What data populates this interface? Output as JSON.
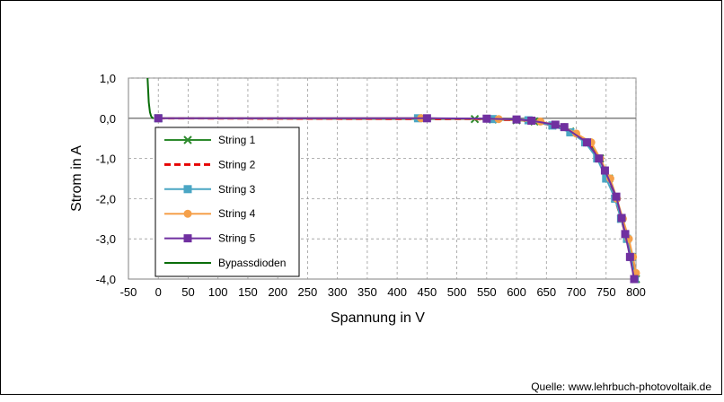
{
  "chart_data": {
    "type": "line",
    "title": "",
    "xlabel": "Spannung in V",
    "ylabel": "Strom in A",
    "xlim": [
      -50,
      800
    ],
    "ylim": [
      -4.0,
      1.0
    ],
    "xticks": [
      -50,
      0,
      50,
      100,
      150,
      200,
      250,
      300,
      350,
      400,
      450,
      500,
      550,
      600,
      650,
      700,
      750,
      800
    ],
    "yticks": [
      1.0,
      0.0,
      -1.0,
      -2.0,
      -3.0,
      -4.0
    ],
    "ytick_labels": [
      "1,0",
      "0,0",
      "-1,0",
      "-2,0",
      "-3,0",
      "-4,0"
    ],
    "grid": true,
    "legend_position": "bottom-left",
    "series": [
      {
        "name": "String 1",
        "color": "#2e8b2e",
        "marker": "x",
        "dash": "solid",
        "x": [
          0,
          530,
          560,
          600,
          630,
          660,
          690,
          720,
          740,
          755,
          765,
          775,
          785,
          793,
          800
        ],
        "y": [
          0,
          -0.02,
          -0.03,
          -0.05,
          -0.08,
          -0.18,
          -0.33,
          -0.6,
          -1.0,
          -1.5,
          -2.0,
          -2.5,
          -3.0,
          -3.45,
          -4.0
        ]
      },
      {
        "name": "String 2",
        "color": "#e60000",
        "marker": "none",
        "dash": "dashed",
        "x": [
          0,
          530,
          560,
          600,
          630,
          660,
          690,
          720,
          740,
          755,
          765,
          775,
          785,
          793,
          800
        ],
        "y": [
          0,
          -0.02,
          -0.03,
          -0.05,
          -0.08,
          -0.18,
          -0.33,
          -0.6,
          -1.0,
          -1.5,
          -2.0,
          -2.5,
          -3.0,
          -3.45,
          -4.0
        ]
      },
      {
        "name": "String 3",
        "color": "#4aa6c4",
        "marker": "square",
        "dash": "solid",
        "x": [
          0,
          435,
          560,
          620,
          660,
          690,
          715,
          735,
          750,
          765,
          775,
          785,
          792,
          798
        ],
        "y": [
          0,
          0,
          -0.02,
          -0.05,
          -0.18,
          -0.35,
          -0.6,
          -1.0,
          -1.5,
          -2.0,
          -2.5,
          -3.0,
          -3.45,
          -4.0
        ]
      },
      {
        "name": "String 4",
        "color": "#f5a04a",
        "marker": "circle",
        "dash": "solid",
        "x": [
          0,
          440,
          570,
          640,
          680,
          700,
          725,
          740,
          757,
          768,
          778,
          788,
          795,
          800
        ],
        "y": [
          0,
          0,
          -0.02,
          -0.08,
          -0.22,
          -0.38,
          -0.6,
          -1.0,
          -1.5,
          -2.0,
          -2.5,
          -3.0,
          -3.45,
          -3.85
        ]
      },
      {
        "name": "String 5",
        "color": "#7030a0",
        "marker": "square",
        "dash": "solid",
        "x": [
          0,
          450,
          550,
          600,
          625,
          665,
          680,
          718,
          738,
          748,
          767,
          776,
          782,
          790,
          797
        ],
        "y": [
          0,
          0,
          -0.01,
          -0.03,
          -0.06,
          -0.16,
          -0.22,
          -0.6,
          -1.0,
          -1.3,
          -1.95,
          -2.48,
          -2.88,
          -3.45,
          -4.0
        ]
      },
      {
        "name": "Bypassdioden",
        "color": "#0a6e0a",
        "marker": "none",
        "dash": "solid",
        "x": [
          -18,
          -17,
          -16,
          -14,
          -12,
          -10,
          -8
        ],
        "y": [
          1.0,
          0.7,
          0.4,
          0.15,
          0.05,
          0.01,
          0.0
        ]
      }
    ]
  },
  "source": "Quelle: www.lehrbuch-photovoltaik.de"
}
